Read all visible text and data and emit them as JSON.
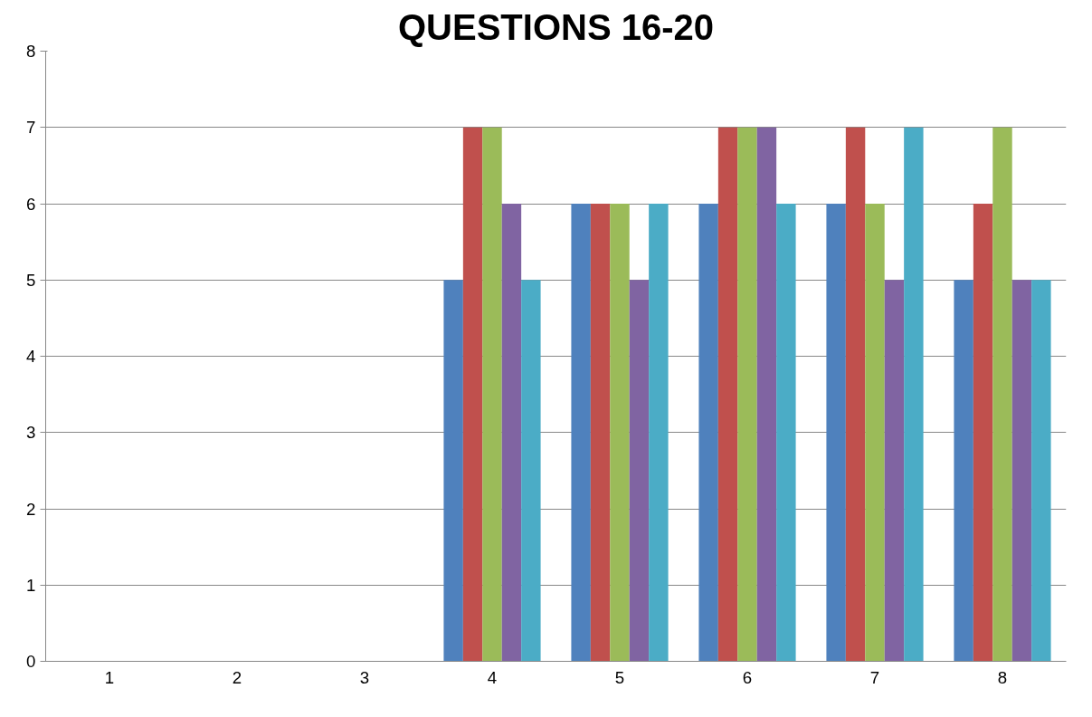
{
  "chart_data": {
    "type": "bar",
    "title": "QUESTIONS 16-20",
    "categories": [
      "1",
      "2",
      "3",
      "4",
      "5",
      "6",
      "7",
      "8"
    ],
    "series": [
      {
        "color": "#4f81bd",
        "values": [
          null,
          null,
          null,
          5,
          6,
          6,
          6,
          5
        ]
      },
      {
        "color": "#c0504d",
        "values": [
          null,
          null,
          null,
          7,
          6,
          7,
          7,
          6
        ]
      },
      {
        "color": "#9bbb59",
        "values": [
          null,
          null,
          null,
          7,
          6,
          7,
          6,
          7
        ]
      },
      {
        "color": "#8064a2",
        "values": [
          null,
          null,
          null,
          6,
          5,
          7,
          5,
          5
        ]
      },
      {
        "color": "#4bacc6",
        "values": [
          null,
          null,
          null,
          5,
          6,
          6,
          7,
          5
        ]
      }
    ],
    "ylim": [
      0,
      8
    ],
    "yticks": [
      0,
      1,
      2,
      3,
      4,
      5,
      6,
      7,
      8
    ],
    "grid": "y"
  }
}
